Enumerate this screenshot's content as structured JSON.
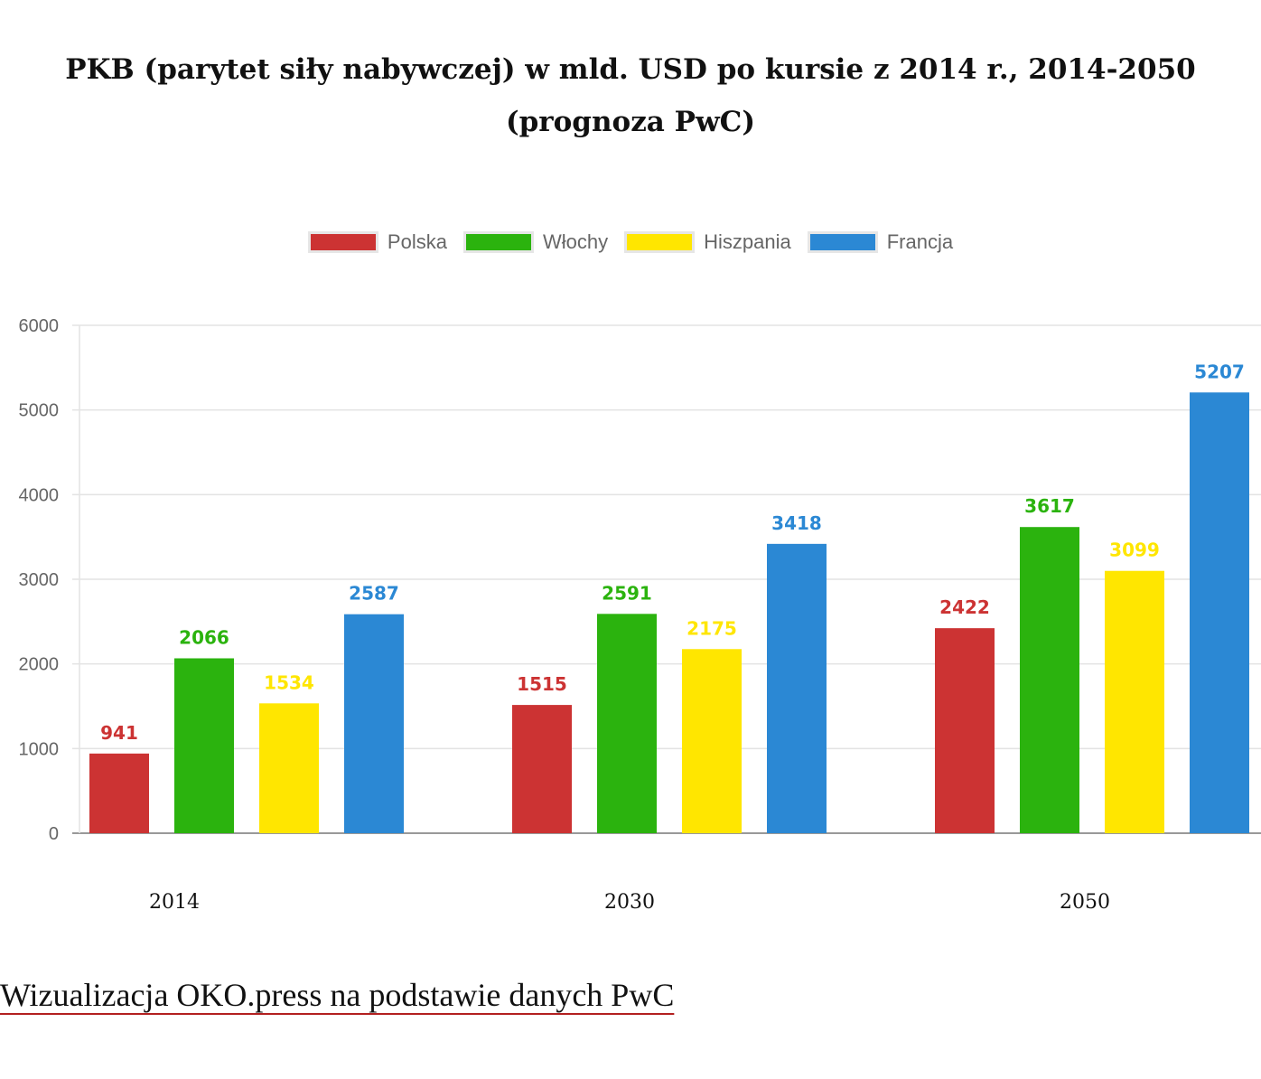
{
  "chart_data": {
    "type": "bar",
    "title": "PKB (parytet siły nabywczej) w mld. USD po kursie z 2014 r., 2014-2050 (prognoza PwC)",
    "xlabel": "",
    "ylabel": "",
    "categories": [
      "2014",
      "2030",
      "2050"
    ],
    "ylim": [
      0,
      6000
    ],
    "yticks": [
      "0",
      "1000",
      "2000",
      "3000",
      "4000",
      "5000",
      "6000"
    ],
    "grid": true,
    "legend_position": "top",
    "series": [
      {
        "name": "Polska",
        "color": "#cc3333",
        "values": [
          941,
          1515,
          2422
        ]
      },
      {
        "name": "Włochy",
        "color": "#2bb30e",
        "values": [
          2066,
          2591,
          3617
        ]
      },
      {
        "name": "Hiszpania",
        "color": "#ffe600",
        "values": [
          1534,
          2175,
          3099
        ]
      },
      {
        "name": "Francja",
        "color": "#2b88d4",
        "values": [
          2587,
          3418,
          5207
        ]
      }
    ]
  },
  "footer": {
    "source_text": "Wizualizacja OKO.press na podstawie danych PwC"
  }
}
